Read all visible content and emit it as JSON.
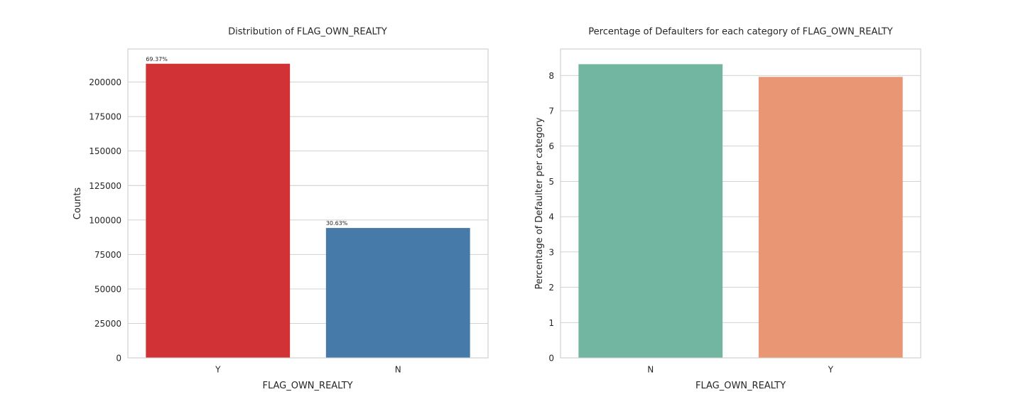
{
  "chart_data": [
    {
      "type": "bar",
      "title": "Distribution of FLAG_OWN_REALTY",
      "xlabel": "FLAG_OWN_REALTY",
      "ylabel": "Counts",
      "categories": [
        "Y",
        "N"
      ],
      "values": [
        213312,
        94199
      ],
      "colors": [
        "#d03235",
        "#467ba9"
      ],
      "data_labels": [
        "69.37%",
        "30.63%"
      ],
      "ylim": [
        0,
        224000
      ],
      "yticks": [
        0,
        25000,
        50000,
        75000,
        100000,
        125000,
        150000,
        175000,
        200000
      ],
      "grid": true
    },
    {
      "type": "bar",
      "title": "Percentage of Defaulters for each category of FLAG_OWN_REALTY",
      "xlabel": "FLAG_OWN_REALTY",
      "ylabel": "Percentage of Defaulter per category",
      "categories": [
        "N",
        "Y"
      ],
      "values": [
        8.32,
        7.96
      ],
      "colors": [
        "#72b5a0",
        "#e89674"
      ],
      "ylim": [
        0,
        8.75
      ],
      "yticks": [
        0,
        1,
        2,
        3,
        4,
        5,
        6,
        7,
        8
      ],
      "grid": true
    }
  ]
}
